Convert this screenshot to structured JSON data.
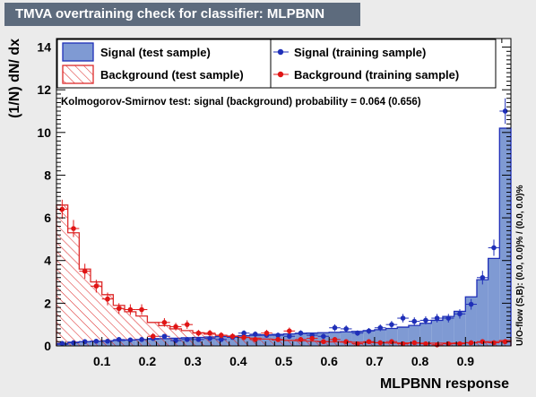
{
  "title": "TMVA overtraining check for classifier: MLPBNN",
  "chart_data": {
    "type": "histogram",
    "xlabel": "MLPBNN response",
    "ylabel": "(1/N) dN/ dx",
    "xlim": [
      0.0,
      1.0
    ],
    "ylim": [
      0,
      14.4
    ],
    "bins": 40,
    "xticks": [
      "0.1",
      "0.2",
      "0.3",
      "0.4",
      "0.5",
      "0.6",
      "0.7",
      "0.8",
      "0.9"
    ],
    "yticks": [
      "0",
      "2",
      "4",
      "6",
      "8",
      "10",
      "12",
      "14"
    ],
    "legend": [
      "Signal (test sample)",
      "Background (test sample)",
      "Signal (training sample)",
      "Background (training sample)"
    ],
    "annotation": "Kolmogorov-Smirnov test: signal (background) probability = 0.064 (0.656)",
    "side_text": "U/O-flow (S,B): (0.0, 0.0)% / (0.0, 0.0)%",
    "signal_test": [
      0.08,
      0.18,
      0.2,
      0.22,
      0.24,
      0.26,
      0.28,
      0.3,
      0.32,
      0.34,
      0.36,
      0.38,
      0.4,
      0.42,
      0.44,
      0.46,
      0.48,
      0.5,
      0.52,
      0.54,
      0.56,
      0.58,
      0.6,
      0.62,
      0.64,
      0.66,
      0.68,
      0.72,
      0.76,
      0.82,
      0.88,
      0.96,
      1.06,
      1.2,
      1.38,
      1.62,
      2.3,
      3.1,
      4.1,
      10.2
    ],
    "background_test": [
      6.6,
      5.3,
      3.6,
      3.0,
      2.4,
      1.9,
      1.6,
      1.4,
      1.1,
      0.95,
      0.8,
      0.72,
      0.62,
      0.55,
      0.5,
      0.45,
      0.4,
      0.36,
      0.32,
      0.28,
      0.26,
      0.24,
      0.22,
      0.2,
      0.19,
      0.18,
      0.17,
      0.16,
      0.15,
      0.14,
      0.14,
      0.13,
      0.13,
      0.13,
      0.13,
      0.14,
      0.15,
      0.17,
      0.2,
      0.25
    ],
    "signal_train": [
      0.12,
      0.15,
      0.2,
      0.22,
      0.22,
      0.3,
      0.28,
      0.3,
      0.35,
      0.45,
      0.25,
      0.3,
      0.3,
      0.35,
      0.3,
      0.4,
      0.6,
      0.55,
      0.5,
      0.5,
      0.45,
      0.6,
      0.5,
      0.45,
      0.85,
      0.8,
      0.6,
      0.7,
      0.85,
      1.0,
      1.3,
      1.15,
      1.2,
      1.3,
      1.3,
      1.5,
      1.95,
      3.2,
      4.6,
      11.0
    ],
    "signal_train_err": [
      0.06,
      0.07,
      0.08,
      0.08,
      0.08,
      0.09,
      0.09,
      0.09,
      0.1,
      0.11,
      0.09,
      0.1,
      0.1,
      0.1,
      0.1,
      0.11,
      0.13,
      0.13,
      0.12,
      0.12,
      0.12,
      0.13,
      0.12,
      0.12,
      0.16,
      0.16,
      0.13,
      0.14,
      0.16,
      0.17,
      0.2,
      0.19,
      0.19,
      0.2,
      0.2,
      0.22,
      0.25,
      0.32,
      0.38,
      0.6
    ],
    "background_train": [
      6.4,
      5.5,
      3.5,
      2.8,
      2.2,
      1.75,
      1.7,
      1.7,
      0.45,
      1.1,
      0.9,
      1.0,
      0.6,
      0.6,
      0.5,
      0.45,
      0.4,
      0.3,
      0.6,
      0.3,
      0.7,
      0.3,
      0.35,
      0.2,
      0.3,
      0.2,
      0.1,
      0.2,
      0.15,
      0.2,
      0.1,
      0.15,
      0.1,
      0.05,
      0.1,
      0.1,
      0.15,
      0.2,
      0.15,
      0.2
    ],
    "background_train_err": [
      0.45,
      0.4,
      0.35,
      0.3,
      0.3,
      0.25,
      0.25,
      0.25,
      0.15,
      0.2,
      0.18,
      0.2,
      0.15,
      0.15,
      0.14,
      0.14,
      0.13,
      0.12,
      0.15,
      0.12,
      0.16,
      0.12,
      0.12,
      0.1,
      0.12,
      0.1,
      0.07,
      0.1,
      0.08,
      0.1,
      0.07,
      0.08,
      0.07,
      0.05,
      0.07,
      0.07,
      0.08,
      0.1,
      0.08,
      0.1
    ]
  }
}
